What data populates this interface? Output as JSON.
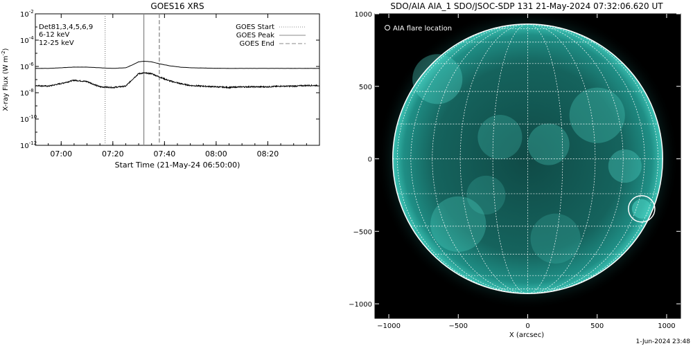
{
  "chart_data": [
    {
      "type": "line",
      "title": "GOES16 XRS",
      "xlabel": "Start Time (21-May-24 06:50:00)",
      "ylabel": "X-ray Flux (W m^-2)",
      "ylabel_main": "X-ray Flux (W m",
      "ylabel_sup": "-2",
      "ylabel_tail": ")",
      "y_scale": "log",
      "ylim_exp": [
        -12,
        -2
      ],
      "y_ticks": [
        {
          "exp": -2,
          "base": "10",
          "sup": "-2"
        },
        {
          "exp": -4,
          "base": "10",
          "sup": "-4"
        },
        {
          "exp": -6,
          "base": "10",
          "sup": "-6"
        },
        {
          "exp": -8,
          "base": "10",
          "sup": "-8"
        },
        {
          "exp": -10,
          "base": "10",
          "sup": "-10"
        },
        {
          "exp": -12,
          "base": "10",
          "sup": "-12"
        }
      ],
      "xlim_min": [
        0,
        110
      ],
      "x_ticks": [
        {
          "min": 10,
          "label": "07:00"
        },
        {
          "min": 30,
          "label": "07:20"
        },
        {
          "min": 50,
          "label": "07:40"
        },
        {
          "min": 70,
          "label": "08:00"
        },
        {
          "min": 90,
          "label": "08:20"
        }
      ],
      "detectors_label": "Det81,3,4,5,6,9",
      "channel_labels": [
        {
          "text": "6-12 keV",
          "color": "#e000e0"
        },
        {
          "text": "12-25 keV",
          "color": "#00d000"
        }
      ],
      "legend": [
        "GOES Start",
        "GOES Peak",
        "GOES End"
      ],
      "markers_min": {
        "start": 27,
        "peak": 42,
        "end": 48
      },
      "series": [
        {
          "name": "long",
          "x_min": [
            0,
            5,
            10,
            15,
            20,
            25,
            30,
            35,
            38,
            40,
            42,
            45,
            48,
            52,
            56,
            60,
            65,
            70,
            75,
            80,
            85,
            90,
            95,
            100,
            105,
            110
          ],
          "log_flux": [
            -6.15,
            -6.15,
            -6.1,
            -6.05,
            -6.05,
            -6.1,
            -6.15,
            -6.1,
            -5.85,
            -5.65,
            -5.6,
            -5.65,
            -5.8,
            -5.95,
            -6.05,
            -6.1,
            -6.12,
            -6.14,
            -6.15,
            -6.15,
            -6.15,
            -6.15,
            -6.15,
            -6.15,
            -6.15,
            -6.15
          ]
        },
        {
          "name": "short",
          "x_min": [
            0,
            5,
            10,
            15,
            20,
            25,
            30,
            35,
            38,
            40,
            42,
            45,
            48,
            52,
            56,
            60,
            65,
            70,
            75,
            80,
            85,
            90,
            95,
            100,
            105,
            110
          ],
          "log_flux": [
            -7.45,
            -7.5,
            -7.3,
            -7.05,
            -7.15,
            -7.55,
            -7.6,
            -7.5,
            -6.9,
            -6.55,
            -6.5,
            -6.55,
            -6.8,
            -7.1,
            -7.3,
            -7.45,
            -7.5,
            -7.55,
            -7.6,
            -7.55,
            -7.55,
            -7.55,
            -7.5,
            -7.5,
            -7.45,
            -7.45
          ]
        }
      ]
    },
    {
      "type": "image",
      "title": "SDO/AIA AIA_1 SDO/JSOC-SDP 131 21-May-2024 07:32:06.620 UT",
      "xlabel": "X (arcsec)",
      "x_ticks": [
        -1000,
        -500,
        0,
        500,
        1000
      ],
      "y_ticks": [
        1000,
        500,
        0,
        -500,
        -1000
      ],
      "x_tick_labels": [
        "−1000",
        "−500",
        "0",
        "500",
        "1000"
      ],
      "y_tick_labels": [
        "1000",
        "500",
        "0",
        "−500",
        "−1000"
      ],
      "xlim": [
        -1100,
        1100
      ],
      "ylim": [
        -1100,
        1000
      ],
      "disk_radius_arcsec": 950,
      "flare_location_label": "AIA flare location",
      "flare_location_arcsec": {
        "x": 820,
        "y": -345,
        "r": 95
      },
      "colors": {
        "disk": "#1b8f86",
        "disk_edge": "#7ee8dc",
        "background": "#000000"
      }
    }
  ],
  "timestamp": "1-Jun-2024 23:48"
}
